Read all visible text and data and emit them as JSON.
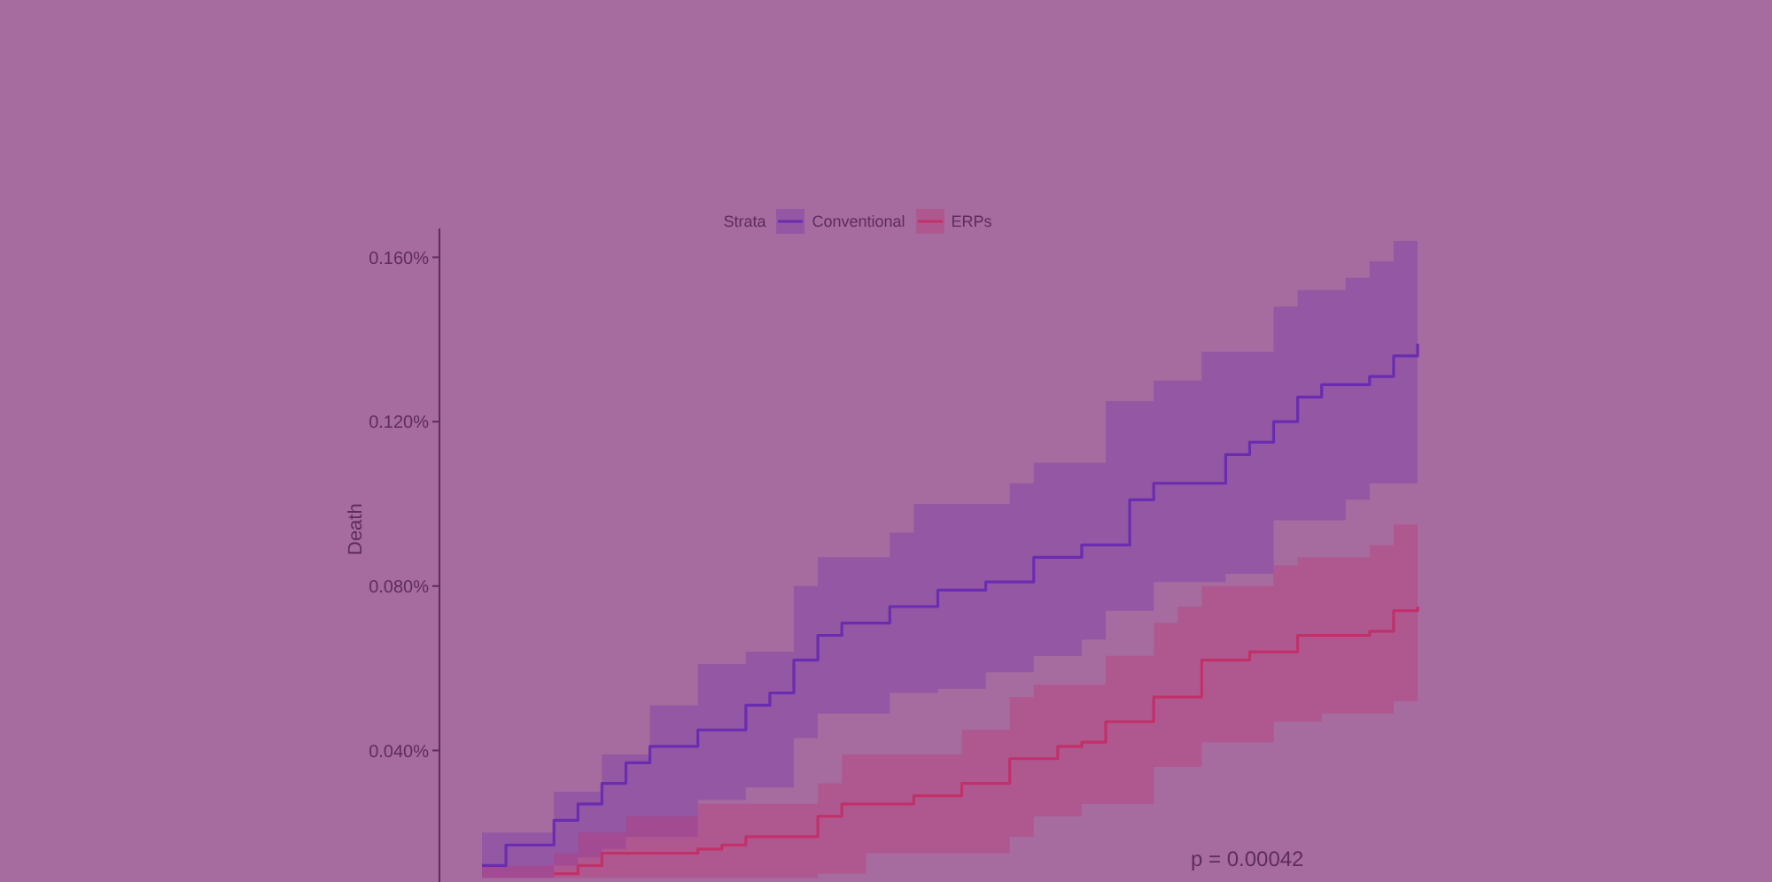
{
  "chart_data": {
    "type": "step",
    "ylabel": "Death",
    "legend_title": "Strata",
    "legend": "top",
    "grid": false,
    "marker": "none",
    "line_style": "solid",
    "tick_labels": "y",
    "categories": [
      null,
      null,
      null,
      null,
      null,
      null,
      null,
      null,
      null,
      null,
      null,
      null,
      null,
      null,
      null,
      null,
      null,
      null,
      null,
      null,
      null,
      null,
      null,
      null,
      null,
      null,
      null,
      null,
      null,
      null,
      null,
      null,
      null,
      null,
      null,
      null,
      null,
      null,
      null,
      null
    ],
    "ylim": [
      0.008,
      0.167
    ],
    "yticks": [
      {
        "value": 0.04,
        "label": "0.040%"
      },
      {
        "value": 0.08,
        "label": "0.080%"
      },
      {
        "value": 0.12,
        "label": "0.120%"
      },
      {
        "value": 0.16,
        "label": "0.160%"
      }
    ],
    "series": [
      {
        "name": "Conventional",
        "color": "#6a2cb0",
        "values": [
          0.012,
          0.017,
          0.017,
          0.023,
          0.027,
          0.032,
          0.037,
          0.041,
          0.041,
          0.045,
          0.045,
          0.051,
          0.054,
          0.062,
          0.068,
          0.071,
          0.071,
          0.075,
          0.075,
          0.079,
          0.079,
          0.081,
          0.081,
          0.087,
          0.087,
          0.09,
          0.09,
          0.101,
          0.105,
          0.105,
          0.105,
          0.112,
          0.115,
          0.12,
          0.126,
          0.129,
          0.129,
          0.131,
          0.136,
          0.139
        ],
        "lower": [
          0.009,
          0.009,
          0.009,
          0.012,
          0.014,
          0.016,
          0.019,
          0.019,
          0.019,
          0.028,
          0.028,
          0.031,
          0.031,
          0.043,
          0.049,
          0.049,
          0.049,
          0.054,
          0.054,
          0.055,
          0.055,
          0.059,
          0.059,
          0.063,
          0.063,
          0.067,
          0.074,
          0.074,
          0.081,
          0.081,
          0.081,
          0.083,
          0.083,
          0.096,
          0.096,
          0.096,
          0.101,
          0.105,
          0.105,
          0.107
        ],
        "upper": [
          0.02,
          0.02,
          0.02,
          0.03,
          0.03,
          0.039,
          0.039,
          0.051,
          0.051,
          0.061,
          0.061,
          0.064,
          0.064,
          0.08,
          0.087,
          0.087,
          0.087,
          0.093,
          0.1,
          0.1,
          0.1,
          0.1,
          0.105,
          0.11,
          0.11,
          0.11,
          0.125,
          0.125,
          0.13,
          0.13,
          0.137,
          0.137,
          0.137,
          0.148,
          0.152,
          0.152,
          0.155,
          0.159,
          0.164,
          0.166
        ]
      },
      {
        "name": "ERPs",
        "color": "#c2306a",
        "values": [
          null,
          null,
          null,
          0.01,
          0.012,
          0.015,
          0.015,
          0.015,
          0.015,
          0.016,
          0.017,
          0.019,
          0.019,
          0.019,
          0.024,
          0.027,
          0.027,
          0.027,
          0.029,
          0.029,
          0.032,
          0.032,
          0.038,
          0.038,
          0.041,
          0.042,
          0.047,
          0.047,
          0.053,
          0.053,
          0.062,
          0.062,
          0.064,
          0.064,
          0.068,
          0.068,
          0.068,
          0.069,
          0.074,
          0.075
        ],
        "lower": [
          0.009,
          0.009,
          0.009,
          0.009,
          0.009,
          0.009,
          0.009,
          0.009,
          0.009,
          0.009,
          0.009,
          0.009,
          0.009,
          0.009,
          0.01,
          0.01,
          0.015,
          0.015,
          0.015,
          0.015,
          0.015,
          0.015,
          0.019,
          0.024,
          0.024,
          0.027,
          0.027,
          0.027,
          0.036,
          0.036,
          0.042,
          0.042,
          0.042,
          0.047,
          0.047,
          0.049,
          0.049,
          0.049,
          0.052,
          0.054
        ],
        "upper": [
          0.012,
          0.012,
          0.012,
          0.015,
          0.02,
          0.02,
          0.024,
          0.024,
          0.024,
          0.027,
          0.027,
          0.027,
          0.027,
          0.027,
          0.032,
          0.039,
          0.039,
          0.039,
          0.039,
          0.039,
          0.045,
          0.045,
          0.053,
          0.056,
          0.056,
          0.056,
          0.063,
          0.063,
          0.071,
          0.075,
          0.08,
          0.08,
          0.08,
          0.085,
          0.087,
          0.087,
          0.087,
          0.09,
          0.095,
          0.095
        ]
      }
    ],
    "annotations": [
      "p = 0.00042"
    ]
  }
}
